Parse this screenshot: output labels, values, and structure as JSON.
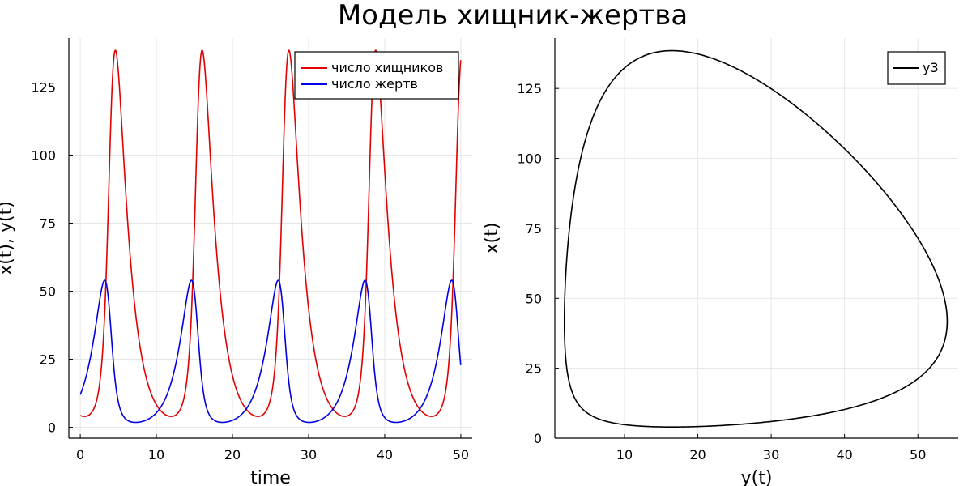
{
  "title": "Модель хищник-жертва",
  "chart_data": [
    {
      "type": "line",
      "xlabel": "time",
      "ylabel": "x(t), y(t)",
      "xlim": [
        -1.5,
        51.5
      ],
      "ylim": [
        -4,
        143
      ],
      "xticks": [
        0,
        10,
        20,
        30,
        40,
        50
      ],
      "yticks": [
        0,
        25,
        50,
        75,
        100,
        125
      ],
      "grid": true,
      "legend_position": "top-right",
      "model": {
        "t_range": [
          0,
          50
        ],
        "period": 11.4,
        "predator": {
          "min": 4,
          "max": 138.5
        },
        "prey": {
          "min": 1.8,
          "max": 54,
          "initial": 12
        }
      },
      "series": [
        {
          "name": "число хищников",
          "color": "#e30000",
          "peaks": [
            {
              "x": 4.3,
              "y": 138.5
            },
            {
              "x": 15.7,
              "y": 138.5
            },
            {
              "x": 27.1,
              "y": 138.5
            },
            {
              "x": 38.5,
              "y": 138.5
            },
            {
              "x": 49.9,
              "y": 138.5
            }
          ],
          "start_value": 4,
          "end_value": 135
        },
        {
          "name": "число жертв",
          "color": "#0000e3",
          "peaks": [
            {
              "x": 3.2,
              "y": 54
            },
            {
              "x": 14.6,
              "y": 54
            },
            {
              "x": 26.0,
              "y": 54
            },
            {
              "x": 37.4,
              "y": 54
            },
            {
              "x": 48.8,
              "y": 54
            }
          ],
          "start_value": 12,
          "end_value": 21
        }
      ]
    },
    {
      "type": "line",
      "xlabel": "y(t)",
      "ylabel": "x(t)",
      "xlim": [
        0.5,
        55.5
      ],
      "ylim": [
        0,
        143
      ],
      "xticks": [
        10,
        20,
        30,
        40,
        50
      ],
      "yticks": [
        0,
        25,
        50,
        75,
        100,
        125
      ],
      "grid": true,
      "legend_position": "top-right",
      "series": [
        {
          "name": "y3",
          "color": "#000000",
          "description": "closed phase-plane cycle",
          "key_points": {
            "top": {
              "x": 15.5,
              "y": 138.5
            },
            "bottom": {
              "x": 15.5,
              "y": 4
            },
            "left": {
              "x": 1.8,
              "y": 37
            },
            "right": {
              "x": 54,
              "y": 37
            }
          }
        }
      ]
    }
  ]
}
